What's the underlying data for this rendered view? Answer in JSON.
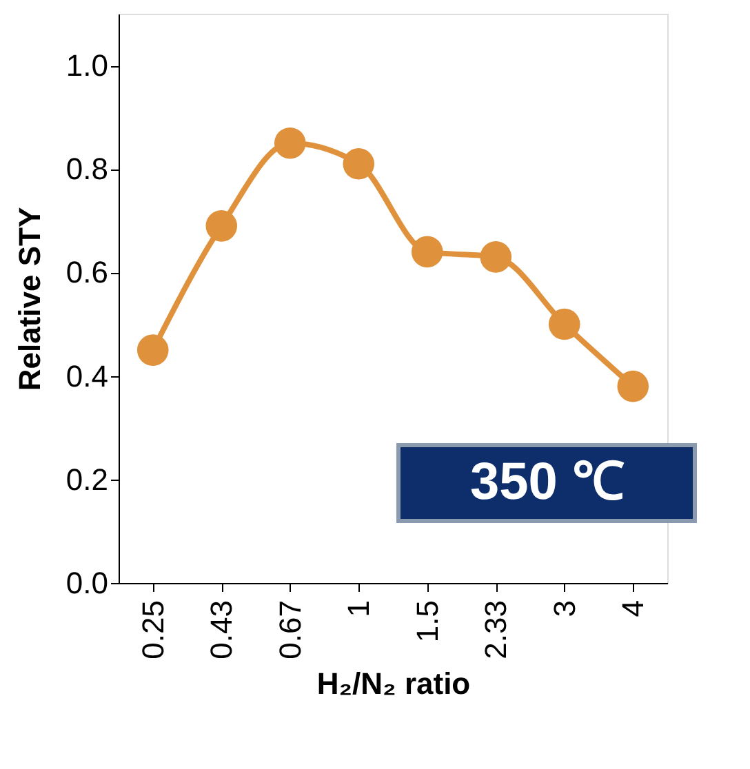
{
  "chart_data": {
    "type": "line",
    "xlabel": "H₂/N₂ ratio",
    "ylabel": "Relative STY",
    "categories": [
      "0.25",
      "0.43",
      "0.67",
      "1",
      "1.5",
      "2.33",
      "3",
      "4"
    ],
    "series": [
      {
        "color": "#e0913c",
        "values": [
          0.45,
          0.69,
          0.85,
          0.81,
          0.64,
          0.63,
          0.5,
          0.38
        ]
      }
    ],
    "ylim": [
      0,
      1.1
    ],
    "yticks": [
      {
        "value": 0,
        "label": "0.0"
      },
      0.2,
      0.4,
      0.6,
      0.8,
      {
        "value": 1,
        "label": "1.0"
      }
    ],
    "marker": "circle",
    "line_style": "solid",
    "grid": false,
    "annotations": [
      "350 ℃"
    ]
  }
}
